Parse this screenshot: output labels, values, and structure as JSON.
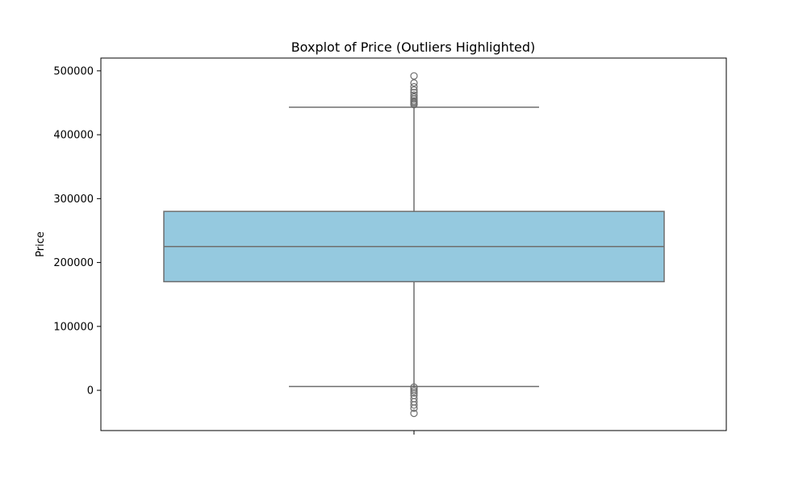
{
  "chart_data": {
    "type": "boxplot",
    "title": "Boxplot of Price (Outliers Highlighted)",
    "xlabel": "",
    "ylabel": "Price",
    "ylim": [
      -63000,
      520000
    ],
    "y_ticks": [
      0,
      100000,
      200000,
      300000,
      400000,
      500000
    ],
    "y_tick_labels": [
      "0",
      "100000",
      "200000",
      "300000",
      "400000",
      "500000"
    ],
    "grid": false,
    "legend": "none",
    "box": {
      "whisker_low": 6000,
      "q1": 170000,
      "median": 225000,
      "q3": 280000,
      "whisker_high": 443000,
      "outliers_high": [
        447000,
        449000,
        451000,
        453000,
        456000,
        459000,
        462000,
        466000,
        470000,
        475000,
        481000,
        492000
      ],
      "outliers_low": [
        5000,
        2000,
        -1000,
        -4000,
        -8000,
        -13000,
        -18000,
        -23000,
        -28000,
        -36000
      ]
    },
    "colors": {
      "box_fill": "#95c9df",
      "line": "#6e6e6e",
      "axes": "#000000"
    }
  }
}
